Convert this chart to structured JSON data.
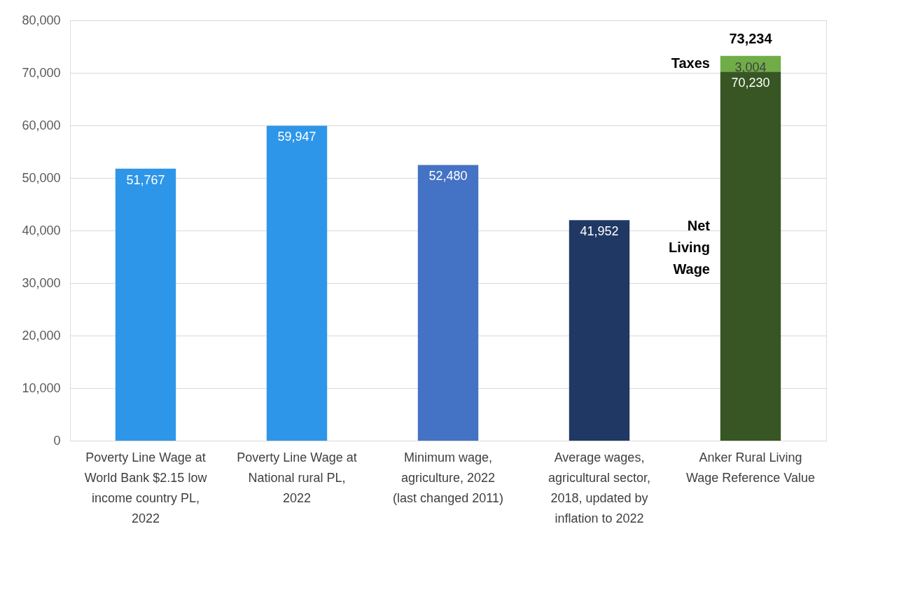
{
  "chart_data": {
    "type": "bar",
    "stacked": true,
    "grid": "y",
    "categories": [
      "Poverty Line Wage at World Bank $2.15 low income country PL, 2022",
      "Poverty Line Wage at National rural PL, 2022",
      "Minimum wage, agriculture, 2022 (last changed 2011)",
      "Average wages, agricultural sector, 2018, updated by inflation to 2022",
      "Anker Rural Living Wage Reference Value"
    ],
    "series": [
      {
        "name": "Net Living Wage",
        "colors": [
          "#2e96e8",
          "#2e96e8",
          "#4472c4",
          "#203864",
          "#375623"
        ],
        "values": [
          51767,
          59947,
          52480,
          41952,
          70230
        ],
        "value_labels": [
          "51,767",
          "59,947",
          "52,480",
          "41,952",
          "70,230"
        ]
      },
      {
        "name": "Taxes",
        "color": "#70ad47",
        "values": [
          null,
          null,
          null,
          null,
          3004
        ],
        "value_labels": [
          null,
          null,
          null,
          null,
          "3,004"
        ]
      }
    ],
    "totals": [
      null,
      null,
      null,
      null,
      "73,234"
    ],
    "ylim": [
      0,
      80000
    ],
    "yticks": [
      {
        "value": 0,
        "label": "0"
      },
      {
        "value": 10000,
        "label": "10,000"
      },
      {
        "value": 20000,
        "label": "20,000"
      },
      {
        "value": 30000,
        "label": "30,000"
      },
      {
        "value": 40000,
        "label": "40,000"
      },
      {
        "value": 50000,
        "label": "50,000"
      },
      {
        "value": 60000,
        "label": "60,000"
      },
      {
        "value": 70000,
        "label": "70,000"
      },
      {
        "value": 80000,
        "label": "80,000"
      }
    ]
  }
}
